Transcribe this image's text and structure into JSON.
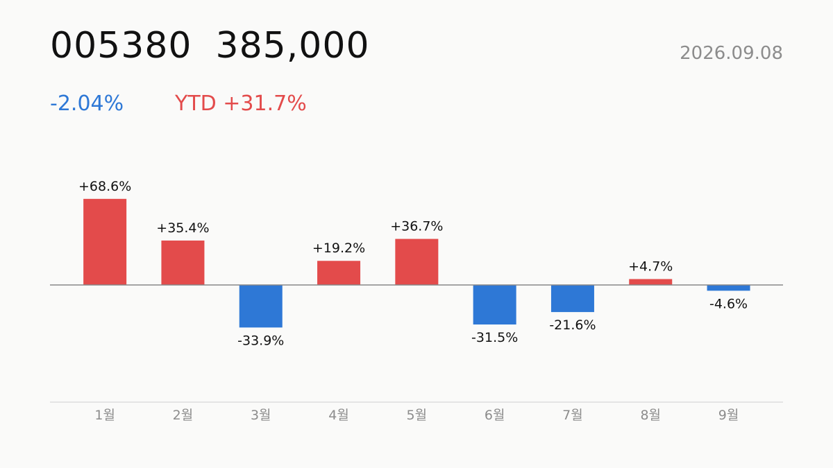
{
  "header": {
    "ticker": "005380",
    "price": "385,000",
    "date": "2026.09.08",
    "change": "-2.04%",
    "ytd": "YTD +31.7%"
  },
  "colors": {
    "up": "#e34b4b",
    "down": "#2e78d6",
    "axis": "#888888",
    "baseline": "#dddddd",
    "tick_text": "#8c8c8c",
    "label_text": "#111111"
  },
  "chart_data": {
    "type": "bar",
    "categories": [
      "1월",
      "2월",
      "3월",
      "4월",
      "5월",
      "6월",
      "7월",
      "8월",
      "9월"
    ],
    "values": [
      68.6,
      35.4,
      -33.9,
      19.2,
      36.7,
      -31.5,
      -21.6,
      4.7,
      -4.6
    ],
    "labels": [
      "+68.6%",
      "+35.4%",
      "-33.9%",
      "+19.2%",
      "+36.7%",
      "-31.5%",
      "-21.6%",
      "+4.7%",
      "-4.6%"
    ],
    "title": "",
    "xlabel": "",
    "ylabel": "",
    "ylim": [
      -93,
      93
    ],
    "grid": false,
    "legend": "none"
  }
}
